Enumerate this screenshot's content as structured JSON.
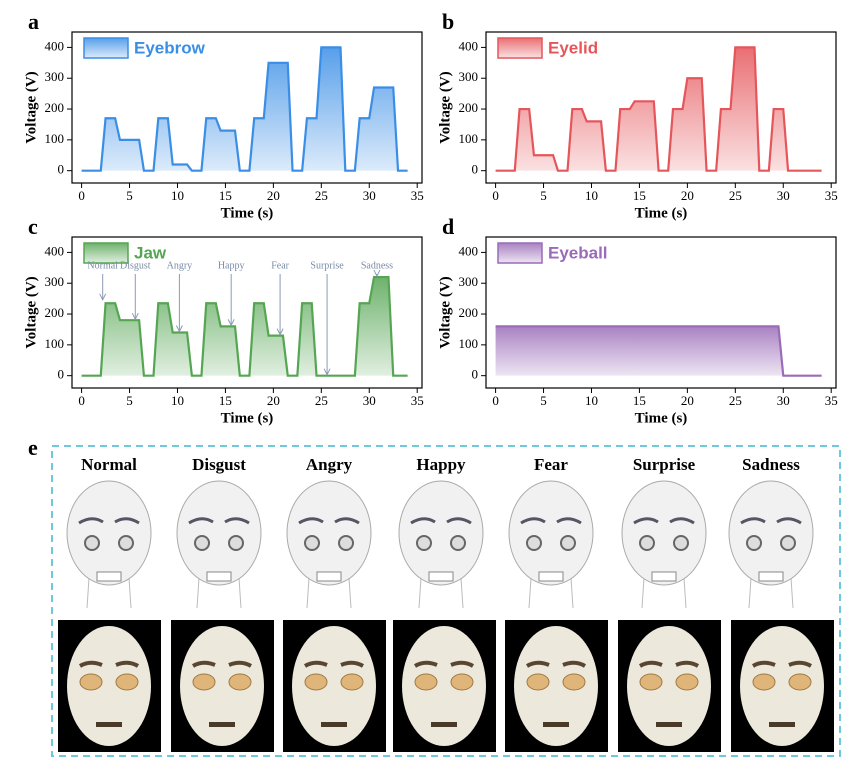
{
  "chart_data": [
    {
      "type": "area",
      "label": "a",
      "xlabel": "Time (s)",
      "ylabel": "Voltage (V)",
      "xlim": [
        -1,
        35.5
      ],
      "ylim": [
        -40,
        450
      ],
      "xticks": [
        0,
        5,
        10,
        15,
        20,
        25,
        30,
        35
      ],
      "yticks": [
        0,
        100,
        200,
        300,
        400
      ],
      "x": [
        0,
        2,
        2.5,
        3.5,
        4,
        6,
        6.5,
        7.5,
        8,
        9,
        9.5,
        11,
        11.5,
        12.5,
        13,
        14,
        14.5,
        16,
        16.5,
        17.5,
        18,
        19,
        19.5,
        21.5,
        22,
        23,
        23.5,
        24.5,
        25,
        27,
        27.5,
        28.5,
        29,
        30,
        30.5,
        32.5,
        33,
        34
      ],
      "series": [
        {
          "name": "Eyebrow",
          "color": "#3a8ee6",
          "values": [
            0,
            0,
            170,
            170,
            100,
            100,
            0,
            0,
            170,
            170,
            20,
            20,
            0,
            0,
            170,
            170,
            130,
            130,
            0,
            0,
            170,
            170,
            350,
            350,
            0,
            0,
            170,
            170,
            400,
            400,
            0,
            0,
            170,
            170,
            270,
            270,
            0,
            0
          ]
        }
      ]
    },
    {
      "type": "area",
      "label": "b",
      "xlabel": "Time (s)",
      "ylabel": "Voltage (V)",
      "xlim": [
        -1,
        35.5
      ],
      "ylim": [
        -40,
        450
      ],
      "xticks": [
        0,
        5,
        10,
        15,
        20,
        25,
        30,
        35
      ],
      "yticks": [
        0,
        100,
        200,
        300,
        400
      ],
      "x": [
        0,
        2,
        2.5,
        3.5,
        4,
        6,
        6.5,
        7.5,
        8,
        9,
        9.5,
        11,
        11.5,
        12.5,
        13,
        14,
        14.5,
        16.5,
        17,
        18,
        18.5,
        19.5,
        20,
        21.5,
        22,
        23,
        23.5,
        24.5,
        25,
        27,
        27.5,
        28.5,
        29,
        30,
        30.5,
        34
      ],
      "series": [
        {
          "name": "Eyelid",
          "color": "#e5565b",
          "values": [
            0,
            0,
            200,
            200,
            50,
            50,
            0,
            0,
            200,
            200,
            160,
            160,
            0,
            0,
            200,
            200,
            225,
            225,
            0,
            0,
            200,
            200,
            300,
            300,
            0,
            0,
            200,
            200,
            400,
            400,
            0,
            0,
            200,
            200,
            0,
            0
          ]
        }
      ]
    },
    {
      "type": "area",
      "label": "c",
      "xlabel": "Time (s)",
      "ylabel": "Voltage (V)",
      "xlim": [
        -1,
        35.5
      ],
      "ylim": [
        -40,
        450
      ],
      "xticks": [
        0,
        5,
        10,
        15,
        20,
        25,
        30,
        35
      ],
      "yticks": [
        0,
        100,
        200,
        300,
        400
      ],
      "x": [
        0,
        2,
        2.5,
        3.5,
        4,
        6,
        6.5,
        7.5,
        8,
        9,
        9.5,
        11,
        11.5,
        12.5,
        13,
        14,
        14.5,
        16,
        16.5,
        17.5,
        18,
        19,
        19.5,
        21,
        21.5,
        22.5,
        23,
        24,
        24.5,
        28.5,
        29,
        30,
        30.5,
        32,
        32.5,
        34
      ],
      "series": [
        {
          "name": "Jaw",
          "color": "#55a553",
          "values": [
            0,
            0,
            235,
            235,
            180,
            180,
            0,
            0,
            235,
            235,
            140,
            140,
            0,
            0,
            235,
            235,
            160,
            160,
            0,
            0,
            235,
            235,
            130,
            130,
            0,
            0,
            235,
            235,
            0,
            0,
            235,
            235,
            320,
            320,
            0,
            0
          ]
        }
      ],
      "annotations": [
        {
          "text": "Normal",
          "x": 2.2,
          "y": 243
        },
        {
          "text": "Disgust",
          "x": 5.6,
          "y": 180
        },
        {
          "text": "Angry",
          "x": 10.2,
          "y": 140
        },
        {
          "text": "Happy",
          "x": 15.6,
          "y": 160
        },
        {
          "text": "Fear",
          "x": 20.7,
          "y": 130
        },
        {
          "text": "Surprise",
          "x": 25.6,
          "y": 0
        },
        {
          "text": "Sadness",
          "x": 30.8,
          "y": 320
        }
      ]
    },
    {
      "type": "area",
      "label": "d",
      "xlabel": "Time (s)",
      "ylabel": "Voltage (V)",
      "xlim": [
        -1,
        35.5
      ],
      "ylim": [
        -40,
        450
      ],
      "xticks": [
        0,
        5,
        10,
        15,
        20,
        25,
        30,
        35
      ],
      "yticks": [
        0,
        100,
        200,
        300,
        400
      ],
      "x": [
        0,
        29.5,
        30,
        34
      ],
      "series": [
        {
          "name": "Eyeball",
          "color": "#9a6bb8",
          "values": [
            160,
            160,
            0,
            0
          ]
        }
      ]
    }
  ],
  "panel_e": {
    "label": "e",
    "expressions": [
      "Normal",
      "Disgust",
      "Angry",
      "Happy",
      "Fear",
      "Surprise",
      "Sadness"
    ]
  }
}
